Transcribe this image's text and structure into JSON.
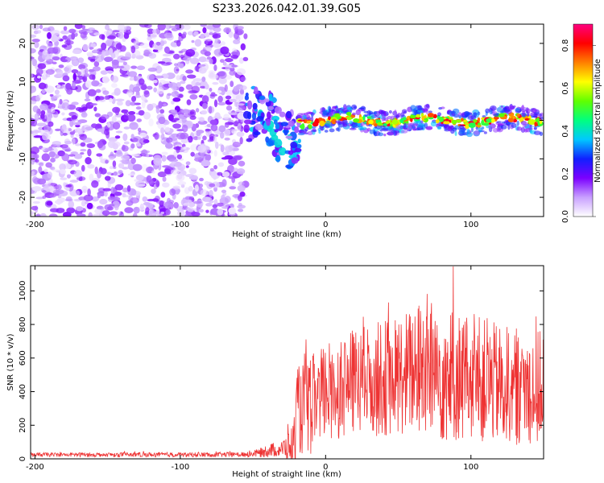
{
  "title": "S233.2026.042.01.39.G05",
  "chart_data": [
    {
      "type": "heatmap",
      "xlabel": "Height of straight line (km)",
      "ylabel": "Frequency (Hz)",
      "xlim": [
        -203,
        150
      ],
      "ylim": [
        -25,
        25
      ],
      "xticks": [
        {
          "value": -200,
          "label": "-200"
        },
        {
          "value": -100,
          "label": "-100"
        },
        {
          "value": 0,
          "label": "0"
        },
        {
          "value": 100,
          "label": "100"
        }
      ],
      "yticks": [
        {
          "value": 20,
          "label": "20"
        },
        {
          "value": 10,
          "label": "10"
        },
        {
          "value": 0,
          "label": "0"
        },
        {
          "value": -10,
          "label": "-10"
        },
        {
          "value": -20,
          "label": "-20"
        }
      ],
      "colorbar": {
        "label": "Normalized spectral amplitude",
        "range": [
          0,
          0.9
        ],
        "ticks": [
          {
            "value": 0.0,
            "label": "0.0"
          },
          {
            "value": 0.2,
            "label": "0.2"
          },
          {
            "value": 0.4,
            "label": "0.4"
          },
          {
            "value": 0.6,
            "label": "0.6"
          },
          {
            "value": 0.8,
            "label": "0.8"
          }
        ],
        "colors": [
          "#ffffff",
          "#c8a0ff",
          "#7b00ff",
          "#1020ff",
          "#00c8ff",
          "#00ff80",
          "#60ff00",
          "#ffff00",
          "#ff8000",
          "#ff0000",
          "#ff0080"
        ]
      },
      "features": {
        "noise_region_x": [
          -203,
          -55
        ],
        "noise_region_amplitude": [
          0.02,
          0.18
        ],
        "transition_x": [
          -55,
          -18
        ],
        "band_region_x": [
          -18,
          150
        ],
        "band_center_hz": 0,
        "band_amplitude": [
          0.3,
          0.85
        ]
      }
    },
    {
      "type": "line",
      "xlabel": "Height of straight line (km)",
      "ylabel": "SNR (10 * v/v)",
      "xlim": [
        -203,
        150
      ],
      "ylim": [
        0,
        1150
      ],
      "line_color": "#ee3333",
      "xticks": [
        {
          "value": -200,
          "label": "-200"
        },
        {
          "value": -100,
          "label": "-100"
        },
        {
          "value": 0,
          "label": "0"
        },
        {
          "value": 100,
          "label": "100"
        }
      ],
      "yticks": [
        {
          "value": 0,
          "label": "0"
        },
        {
          "value": 200,
          "label": "200"
        },
        {
          "value": 400,
          "label": "400"
        },
        {
          "value": 600,
          "label": "600"
        },
        {
          "value": 800,
          "label": "800"
        },
        {
          "value": 1000,
          "label": "1000"
        }
      ],
      "envelope": {
        "x": [
          -203,
          -60,
          -45,
          -40,
          -30,
          -22,
          -20,
          -10,
          0,
          20,
          40,
          60,
          70,
          80,
          100,
          120,
          150
        ],
        "baseline": [
          25,
          25,
          35,
          50,
          60,
          80,
          280,
          320,
          400,
          460,
          480,
          520,
          560,
          500,
          480,
          440,
          420
        ],
        "spread": [
          12,
          15,
          25,
          40,
          50,
          150,
          260,
          300,
          300,
          320,
          350,
          380,
          450,
          420,
          380,
          360,
          340
        ]
      }
    }
  ]
}
